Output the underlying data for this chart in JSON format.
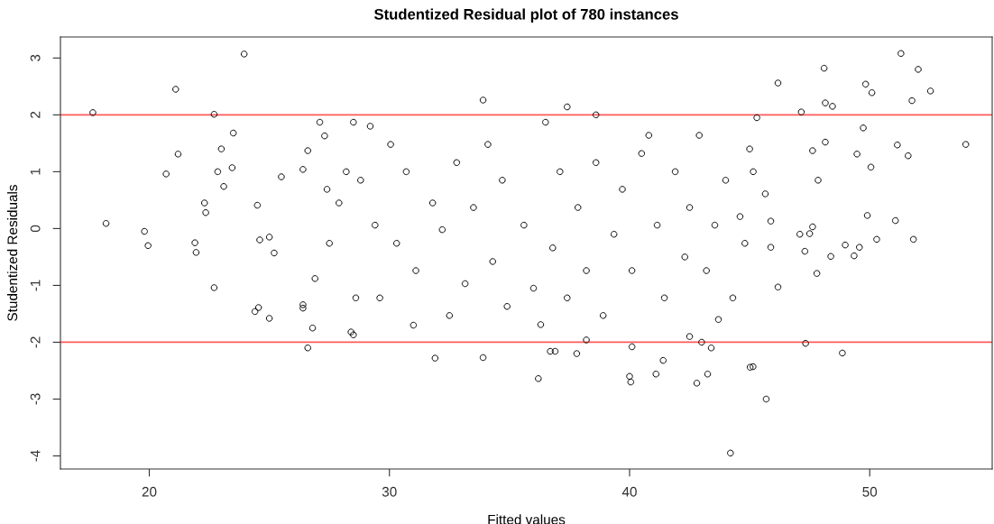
{
  "chart_data": {
    "type": "scatter",
    "title": "Studentized Residual plot of 780 instances",
    "xlabel": "Fitted values",
    "ylabel": "Studentized Residuals",
    "xlim": [
      16.3,
      55.1
    ],
    "ylim": [
      -4.23,
      3.37
    ],
    "xticks": [
      20,
      30,
      40,
      50
    ],
    "yticks": [
      -4,
      -3,
      -2,
      -1,
      0,
      1,
      2,
      3
    ],
    "grid": false,
    "marker": "circle",
    "ref_lines": [
      {
        "axis": "y",
        "value": 2,
        "color": "#ff5a5a"
      },
      {
        "axis": "y",
        "value": -2,
        "color": "#ff5a5a"
      }
    ],
    "series": [
      {
        "color": "#000000",
        "x": [
          17.65,
          18.2,
          19.8,
          19.95,
          20.7,
          21.1,
          21.2,
          21.9,
          21.95,
          22.3,
          22.35,
          22.7,
          22.7,
          22.85,
          23.0,
          23.1,
          23.45,
          23.5,
          23.95,
          24.4,
          24.55,
          25.0,
          24.5,
          24.6,
          25.0,
          25.2,
          25.5,
          26.4,
          26.4,
          26.6,
          26.8,
          26.9,
          26.4,
          26.6,
          27.1,
          27.3,
          28.4,
          28.5,
          28.5,
          31.0,
          31.9,
          33.9,
          33.9,
          36.2,
          36.7,
          36.9,
          37.4,
          38.6,
          37.8,
          38.2,
          40.0,
          40.05,
          40.1,
          41.1,
          41.4,
          42.5,
          42.8,
          43.0,
          43.25,
          43.4,
          44.2,
          45.02,
          45.14,
          45.69,
          45.3,
          46.18,
          47.15,
          47.33,
          48.1,
          48.15,
          48.45,
          48.86,
          49.83,
          50.09,
          51.3,
          51.76,
          52.02,
          52.53,
          54.0,
          51.15,
          51.6,
          51.82,
          51.07,
          49.9,
          50.29,
          50.05,
          49.73,
          49.47,
          49.57,
          49.35,
          48.98,
          48.38,
          47.8,
          47.85,
          47.62,
          48.15,
          47.62,
          47.5,
          47.09,
          47.3,
          46.18,
          45.88,
          45.88,
          28.8,
          29.2,
          29.6,
          30.05,
          30.3,
          30.7,
          31.1,
          31.8,
          32.2,
          32.5,
          32.8,
          33.15,
          33.5,
          34.1,
          34.3,
          34.7,
          34.9,
          35.6,
          36.0,
          36.3,
          36.5,
          36.8,
          37.1,
          37.4,
          37.85,
          38.2,
          38.6,
          38.9,
          39.35,
          39.7,
          40.1,
          40.5,
          40.8,
          41.15,
          41.45,
          41.9,
          42.3,
          42.5,
          42.9,
          43.2,
          43.55,
          43.7,
          44.0,
          44.3,
          44.6,
          44.8,
          45.15,
          45.0,
          45.65,
          27.5,
          27.9,
          28.2,
          28.6,
          27.4,
          29.4
        ],
        "values": [
          2.04,
          0.09,
          -0.05,
          -0.3,
          0.96,
          2.45,
          1.31,
          -0.25,
          -0.42,
          0.45,
          0.28,
          2.01,
          -1.04,
          1.0,
          1.4,
          0.74,
          1.07,
          1.68,
          3.07,
          -1.46,
          -1.39,
          -1.58,
          0.41,
          -0.2,
          -0.15,
          -0.43,
          0.91,
          -1.34,
          -1.4,
          -2.1,
          -1.75,
          -0.88,
          1.04,
          1.37,
          1.87,
          1.63,
          -1.82,
          -1.87,
          1.87,
          -1.7,
          -2.28,
          2.26,
          -2.27,
          -2.64,
          -2.16,
          -2.16,
          2.14,
          2.0,
          -2.2,
          -1.96,
          -2.6,
          -2.7,
          -2.08,
          -2.56,
          -2.32,
          -1.9,
          -2.72,
          -2.0,
          -2.56,
          -2.1,
          -3.95,
          -2.44,
          -2.43,
          -3.0,
          1.95,
          2.56,
          2.05,
          -2.02,
          2.82,
          2.21,
          2.15,
          -2.19,
          2.54,
          2.39,
          3.08,
          2.25,
          2.8,
          2.42,
          1.48,
          1.47,
          1.28,
          -0.19,
          0.14,
          0.23,
          -0.19,
          1.08,
          1.77,
          1.31,
          -0.33,
          -0.48,
          -0.29,
          -0.49,
          -0.79,
          0.85,
          1.37,
          1.52,
          0.03,
          -0.09,
          -0.1,
          -0.4,
          -1.03,
          -0.33,
          0.13,
          0.85,
          1.8,
          -1.22,
          1.48,
          -0.26,
          1.0,
          -0.74,
          0.45,
          -0.02,
          -1.53,
          1.16,
          -0.97,
          0.37,
          1.48,
          -0.58,
          0.85,
          -1.37,
          0.06,
          -1.05,
          -1.69,
          1.87,
          -0.34,
          1.0,
          -1.22,
          0.37,
          -0.74,
          1.16,
          -1.53,
          -0.1,
          0.69,
          -0.74,
          1.32,
          1.64,
          0.06,
          -1.22,
          1.0,
          -0.5,
          0.37,
          1.64,
          -0.74,
          0.06,
          -1.6,
          0.85,
          -1.22,
          0.21,
          -0.26,
          1.0,
          1.4,
          0.61,
          -0.26,
          0.45,
          1.0,
          -1.22,
          0.69,
          0.06
        ]
      }
    ]
  }
}
